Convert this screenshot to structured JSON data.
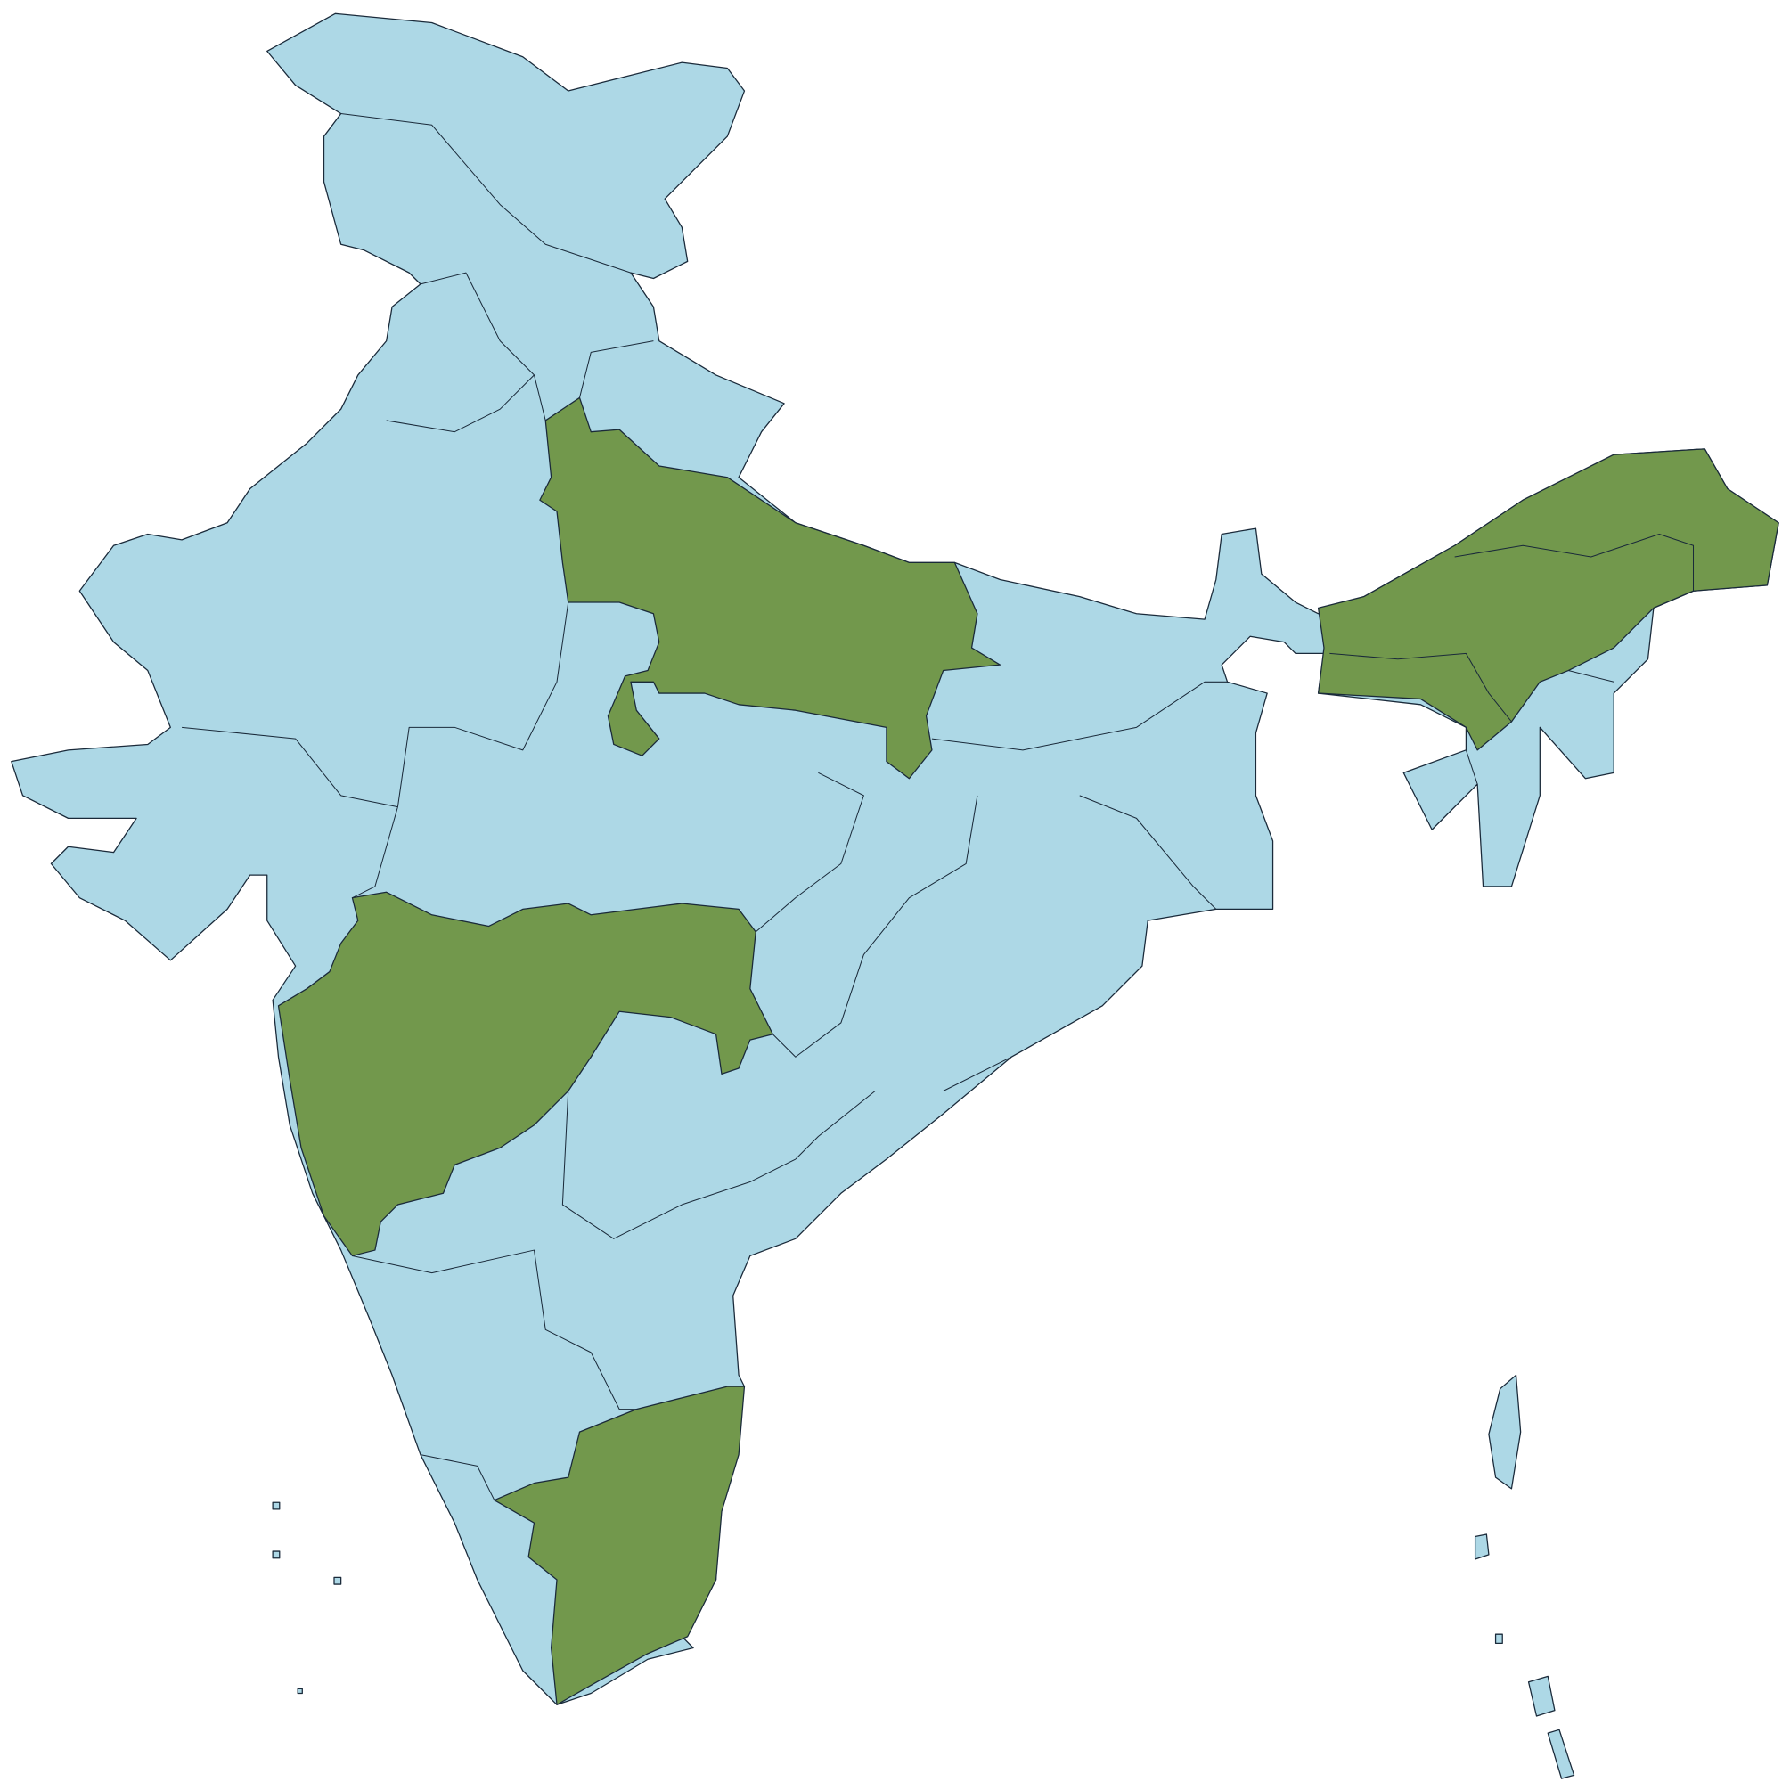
{
  "map": {
    "fill": "#add8e6",
    "highlight": "#72984c",
    "stroke": "#1a2a3a"
  }
}
